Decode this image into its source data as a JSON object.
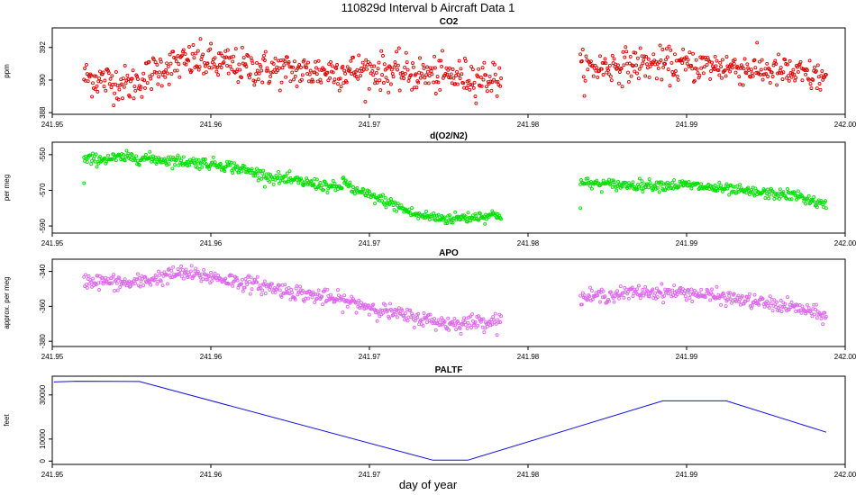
{
  "figure": {
    "title": "110829d   Interval b Aircraft Data 1",
    "xlabel": "day of year"
  },
  "chart_data": [
    {
      "type": "scatter",
      "title": "CO2",
      "ylabel": "ppm",
      "xlim": [
        241.95,
        242.0
      ],
      "ylim": [
        387.9,
        393.2
      ],
      "xticks": [
        "241.95",
        "241.96",
        "241.97",
        "241.98",
        "241.99",
        "242.00"
      ],
      "yticks": [
        "388",
        "390",
        "392"
      ],
      "color": "#e00000",
      "segments": [
        {
          "x_start": 241.952,
          "x_end": 241.9783,
          "anchors": [
            [
              241.952,
              390.2
            ],
            [
              241.955,
              389.7
            ],
            [
              241.957,
              390.8
            ],
            [
              241.959,
              391.2
            ],
            [
              241.962,
              390.8
            ],
            [
              241.966,
              390.5
            ],
            [
              241.97,
              390.6
            ],
            [
              241.974,
              390.3
            ],
            [
              241.9783,
              390.1
            ]
          ],
          "noise": 0.55,
          "count": 520
        },
        {
          "x_start": 241.9833,
          "x_end": 241.9988,
          "anchors": [
            [
              241.9833,
              390.7
            ],
            [
              241.987,
              391.0
            ],
            [
              241.99,
              390.9
            ],
            [
              241.993,
              390.8
            ],
            [
              241.996,
              390.5
            ],
            [
              241.9988,
              390.1
            ]
          ],
          "noise": 0.5,
          "count": 300
        }
      ]
    },
    {
      "type": "scatter",
      "title": "d(O2/N2)",
      "ylabel": "per meg",
      "xlim": [
        241.95,
        242.0
      ],
      "ylim": [
        -594,
        -543
      ],
      "xticks": [
        "241.95",
        "241.96",
        "241.97",
        "241.98",
        "241.99",
        "242.00"
      ],
      "yticks": [
        "-550",
        "-570",
        "-590"
      ],
      "color": "#00e000",
      "segments": [
        {
          "x_start": 241.952,
          "x_end": 241.9783,
          "anchors": [
            [
              241.952,
              -553
            ],
            [
              241.955,
              -551.5
            ],
            [
              241.958,
              -553.5
            ],
            [
              241.961,
              -556
            ],
            [
              241.964,
              -563
            ],
            [
              241.967,
              -567
            ],
            [
              241.968,
              -569
            ],
            [
              241.9685,
              -565
            ],
            [
              241.969,
              -570
            ],
            [
              241.971,
              -576
            ],
            [
              241.973,
              -584
            ],
            [
              241.975,
              -586
            ],
            [
              241.9783,
              -583.5
            ]
          ],
          "noise": 1.6,
          "count": 520
        },
        {
          "x_start": 241.9833,
          "x_end": 241.9988,
          "anchors": [
            [
              241.9833,
              -566
            ],
            [
              241.986,
              -567
            ],
            [
              241.99,
              -567
            ],
            [
              241.994,
              -571
            ],
            [
              241.997,
              -573
            ],
            [
              241.9988,
              -579
            ]
          ],
          "noise": 1.5,
          "count": 300
        }
      ],
      "outliers": [
        [
          241.952,
          -566
        ],
        [
          241.9833,
          -580
        ]
      ]
    },
    {
      "type": "scatter",
      "title": "APO",
      "ylabel": "approx. per meg",
      "xlim": [
        241.95,
        242.0
      ],
      "ylim": [
        -383,
        -333
      ],
      "xticks": [
        "241.95",
        "241.96",
        "241.97",
        "241.98",
        "241.99",
        "242.00"
      ],
      "yticks": [
        "-340",
        "-360",
        "-380"
      ],
      "color": "#dd66ee",
      "segments": [
        {
          "x_start": 241.952,
          "x_end": 241.9783,
          "anchors": [
            [
              241.952,
              -345
            ],
            [
              241.955,
              -347
            ],
            [
              241.958,
              -341
            ],
            [
              241.96,
              -343
            ],
            [
              241.963,
              -348
            ],
            [
              241.966,
              -353
            ],
            [
              241.969,
              -358
            ],
            [
              241.972,
              -365
            ],
            [
              241.975,
              -370
            ],
            [
              241.9783,
              -368
            ]
          ],
          "noise": 2.2,
          "count": 520
        },
        {
          "x_start": 241.9833,
          "x_end": 241.9988,
          "anchors": [
            [
              241.9833,
              -355
            ],
            [
              241.987,
              -352
            ],
            [
              241.99,
              -352
            ],
            [
              241.994,
              -357
            ],
            [
              241.997,
              -361
            ],
            [
              241.9988,
              -366
            ]
          ],
          "noise": 2.0,
          "count": 300
        }
      ]
    },
    {
      "type": "line",
      "title": "PALTF",
      "ylabel": "feet",
      "xlim": [
        241.95,
        242.0
      ],
      "ylim": [
        -1500,
        38500
      ],
      "xticks": [
        "241.95",
        "241.96",
        "241.97",
        "241.98",
        "241.99",
        "242.00"
      ],
      "yticks": [
        "0",
        "10000",
        "30000"
      ],
      "color": "#1010e0",
      "x": [
        241.9501,
        241.9515,
        241.9555,
        241.974,
        241.9762,
        241.9885,
        241.9925,
        241.9988
      ],
      "y": [
        35900,
        36200,
        36100,
        400,
        400,
        27300,
        27300,
        13100
      ]
    }
  ]
}
